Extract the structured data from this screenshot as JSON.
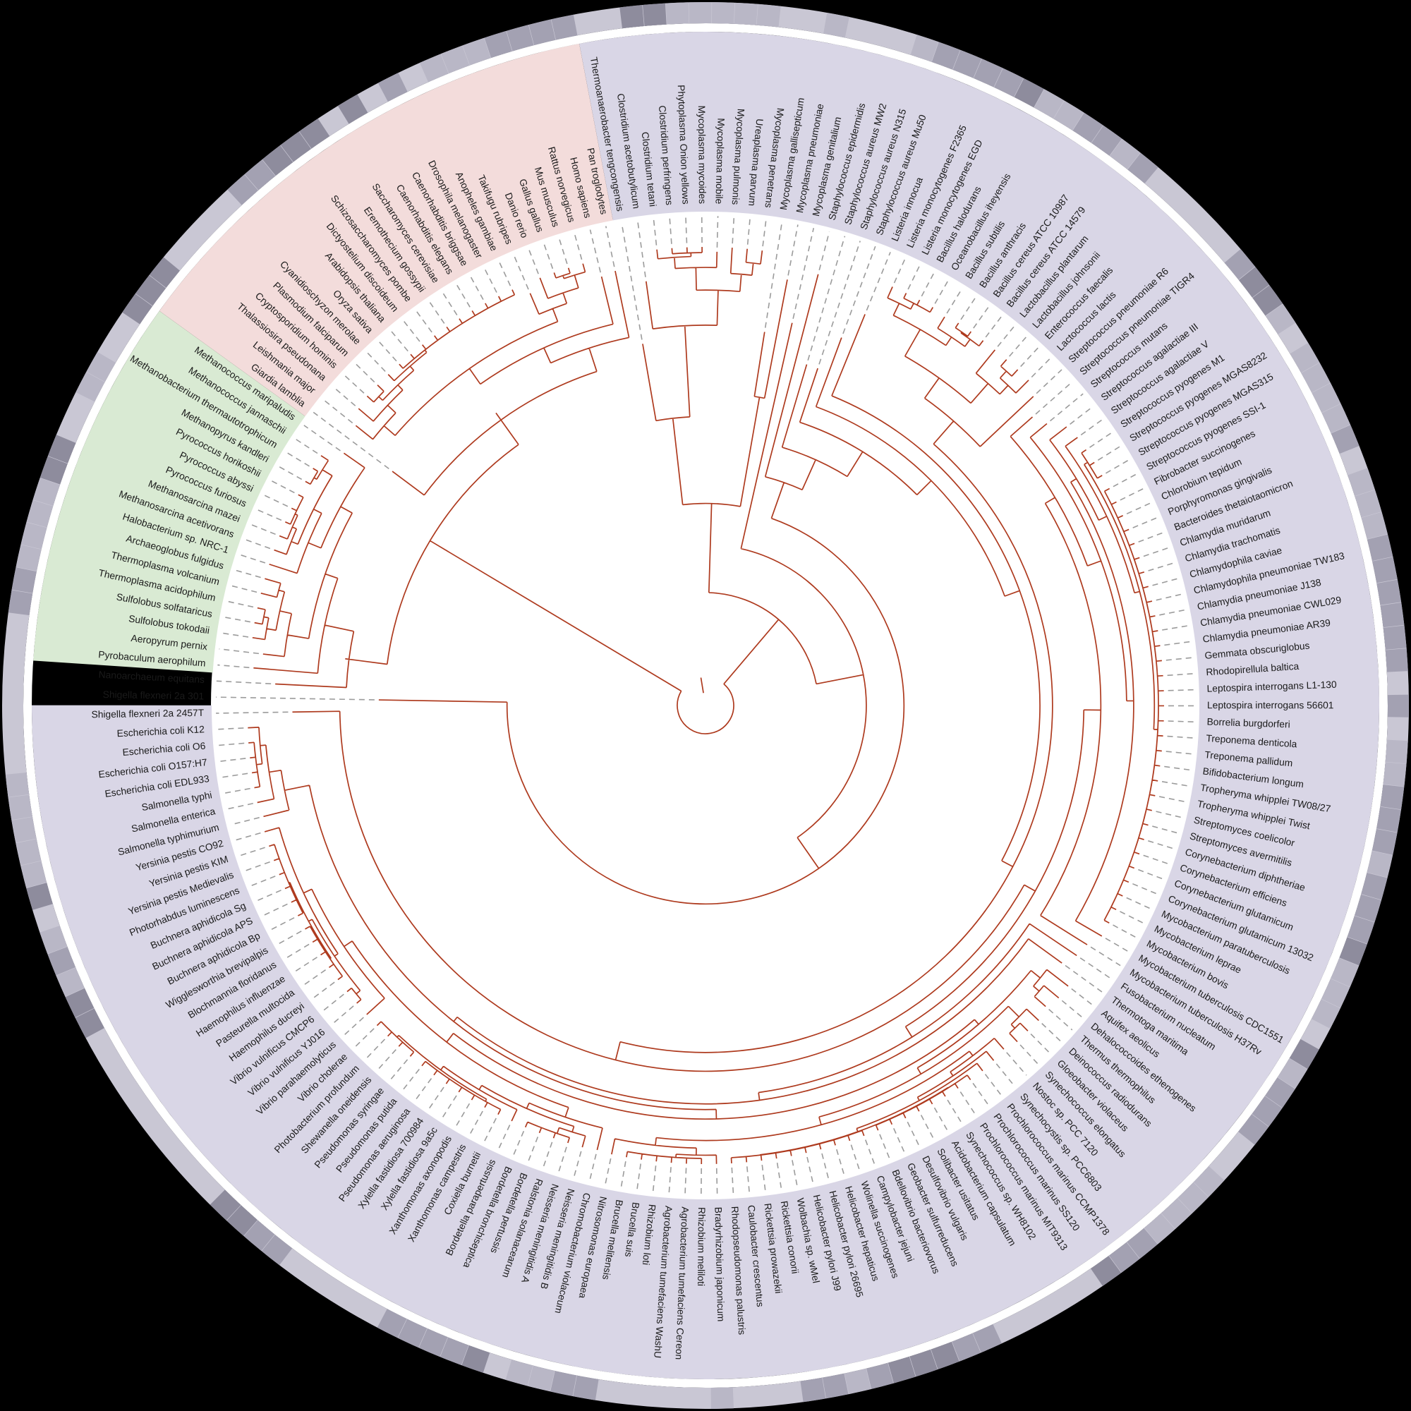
{
  "figure": {
    "kind": "circular-phylogenetic-tree",
    "background_color": "#000000",
    "inner_disc_color": "#ffffff",
    "branch_color": "#AE3A1E",
    "leader_line_color": "#9b9b9b",
    "label_color": "#1a1a1a"
  },
  "sectors": [
    {
      "id": "lavender-sector",
      "color": "#d9d6e6",
      "leaf_from": 0,
      "leaf_to": 149
    },
    {
      "id": "green-sector",
      "color": "#d9ead3",
      "leaf_from": 150,
      "leaf_to": 167
    },
    {
      "id": "pink-sector",
      "color": "#f3dcdb",
      "leaf_from": 168,
      "leaf_to": 190
    }
  ],
  "outer_ring": {
    "base_color": "#c9c7d4",
    "tone_palette": [
      "#c9c7d4",
      "#b9b7c6",
      "#a3a1b2",
      "#8e8c9d"
    ]
  },
  "leaves": [
    "Thermoanaerobacter tengcongensis",
    "Clostridium acetobutylicum",
    "Clostridium tetani",
    "Clostridium perfringens",
    "Phytoplasma Onion yellows",
    "Mycoplasma mycoides",
    "Mycoplasma mobile",
    "Mycoplasma pulmonis",
    "Ureaplasma parvum",
    "Mycoplasma penetrans",
    "Mycoplasma gallisepticum",
    "Mycoplasma pneumoniae",
    "Mycoplasma genitalium",
    "Staphylococcus epidermidis",
    "Staphylococcus aureus MW2",
    "Staphylococcus aureus N315",
    "Staphylococcus aureus Mu50",
    "Listeria innocua",
    "Listeria monocytogenes F2365",
    "Listeria monocytogenes EGD",
    "Bacillus halodurans",
    "Oceanobacillus iheyensis",
    "Bacillus subtilis",
    "Bacillus anthracis",
    "Bacillus cereus ATCC 10987",
    "Bacillus cereus ATCC 14579",
    "Lactobacillus plantarum",
    "Lactobacillus johnsonii",
    "Enterococcus faecalis",
    "Lactococcus lactis",
    "Streptococcus pneumoniae R6",
    "Streptococcus pneumoniae TIGR4",
    "Streptococcus mutans",
    "Streptococcus agalactiae III",
    "Streptococcus agalactiae V",
    "Streptococcus pyogenes M1",
    "Streptococcus pyogenes MGAS8232",
    "Streptococcus pyogenes MGAS315",
    "Streptococcus pyogenes SSI-1",
    "Fibrobacter succinogenes",
    "Chlorobium tepidum",
    "Porphyromonas gingivalis",
    "Bacteroides thetaiotaomicron",
    "Chlamydia muridarum",
    "Chlamydia trachomatis",
    "Chlamydophila caviae",
    "Chlamydophila pneumoniae TW183",
    "Chlamydia pneumoniae J138",
    "Chlamydia pneumoniae CWL029",
    "Chlamydia pneumoniae AR39",
    "Gemmata obscuriglobus",
    "Rhodopirellula baltica",
    "Leptospira interrogans L1-130",
    "Leptospira interrogans 56601",
    "Borrelia burgdorferi",
    "Treponema denticola",
    "Treponema pallidum",
    "Bifidobacterium longum",
    "Tropheryma whipplei TW08/27",
    "Tropheryma whipplei Twist",
    "Streptomyces coelicolor",
    "Streptomyces avermitilis",
    "Corynebacterium diphtheriae",
    "Corynebacterium efficiens",
    "Corynebacterium glutamicum",
    "Corynebacterium glutamicum 13032",
    "Mycobacterium paratuberculosis",
    "Mycobacterium leprae",
    "Mycobacterium bovis",
    "Mycobacterium tuberculosis CDC1551",
    "Mycobacterium tuberculosis H37Rv",
    "Fusobacterium nucleatum",
    "Thermotoga maritima",
    "Aquifex aeolicus",
    "Dehalococcoides ethenogenes",
    "Thermus thermophilus",
    "Deinococcus radiodurans",
    "Gloeobacter violaceus",
    "Synechococcus elongatus",
    "Nostoc sp. PCC 7120",
    "Synechocystis sp. PCC6803",
    "Prochlorococcus marinus CCMP1378",
    "Prochlorococcus marinus SS120",
    "Prochlorococcus marinus MIT9313",
    "Synechococcus sp. WH8102",
    "Acidobacterium capsulatum",
    "Solibacter usitatus",
    "Desulfovibrio vulgaris",
    "Geobacter sulfurreducens",
    "Bdellovibrio bacteriovorus",
    "Campylobacter jejuni",
    "Wolinella succinogenes",
    "Helicobacter hepaticus",
    "Helicobacter pylori 26695",
    "Helicobacter pylori J99",
    "Wolbachia sp. wMel",
    "Rickettsia conorii",
    "Rickettsia prowazekii",
    "Caulobacter crescentus",
    "Rhodopseudomonas palustris",
    "Bradyrhizobium japonicum",
    "Rhizobium meliloti",
    "Agrobacterium tumefaciens Cereon",
    "Agrobacterium tumefaciens WashU",
    "Rhizobium loti",
    "Brucella suis",
    "Brucella melitensis",
    "Nitrosomonas europaea",
    "Chromobacterium violaceum",
    "Neisseria meningitidis B",
    "Neisseria meningitidis A",
    "Ralstonia solanacearum",
    "Bordetella pertussis",
    "Bordetella bronchiseptica",
    "Bordetella parapertussis",
    "Coxiella burnetii",
    "Xanthomonas campestris",
    "Xanthomonas axonopodis",
    "Xylella fastidiosa 9a5c",
    "Xylella fastidiosa 700984",
    "Pseudomonas aeruginosa",
    "Pseudomonas putida",
    "Pseudomonas syringae",
    "Shewanella oneidensis",
    "Photobacterium profundum",
    "Vibrio cholerae",
    "Vibrio parahaemolyticus",
    "Vibrio vulnificus YJ016",
    "Vibrio vulnificus CMCP6",
    "Haemophilus ducreyi",
    "Pasteurella multocida",
    "Haemophilus influenzae",
    "Blochmannia floridanus",
    "Wigglesworthia brevipalpis",
    "Buchnera aphidicola Bp",
    "Buchnera aphidicola APS",
    "Buchnera aphidicola Sg",
    "Photorhabdus luminescens",
    "Yersinia pestis Medievalis",
    "Yersinia pestis KIM",
    "Yersinia pestis CO92",
    "Salmonella typhimurium",
    "Salmonella enterica",
    "Salmonella typhi",
    "Escherichia coli EDL933",
    "Escherichia coli O157:H7",
    "Escherichia coli O6",
    "Escherichia coli K12",
    "Shigella flexneri 2a 2457T",
    "Shigella flexneri 2a 301",
    "Nanoarchaeum equitans",
    "Pyrobaculum aerophilum",
    "Aeropyrum pernix",
    "Sulfolobus tokodaii",
    "Sulfolobus solfataricus",
    "Thermoplasma acidophilum",
    "Thermoplasma volcanium",
    "Archaeoglobus fulgidus",
    "Halobacterium sp. NRC-1",
    "Methanosarcina acetivorans",
    "Methanosarcina mazei",
    "Pyrococcus furiosus",
    "Pyrococcus abyssi",
    "Pyrococcus horikoshii",
    "Methanopyrus kandleri",
    "Methanobacterium thermautotrophicum",
    "Methanococcus jannaschii",
    "Methanococcus maripaludis",
    "Giardia lamblia",
    "Leishmania major",
    "Thalassiosira pseudonana",
    "Cryptosporidium hominis",
    "Plasmodium falciparum",
    "Cyanidioschyzon merolae",
    "Oryza sativa",
    "Arabidopsis thaliana",
    "Dictyostelium discoideum",
    "Schizosaccharomyces pombe",
    "Eremothecium gossypii",
    "Saccharomyces cerevisiae",
    "Caenorhabditis elegans",
    "Caenorhabditis briggsae",
    "Drosophila melanogaster",
    "Anopheles gambiae",
    "Takifugu rubripes",
    "Danio rerio",
    "Gallus gallus",
    "Mus musculus",
    "Rattus norvegicus",
    "Homo sapiens",
    "Pan troglodytes"
  ]
}
